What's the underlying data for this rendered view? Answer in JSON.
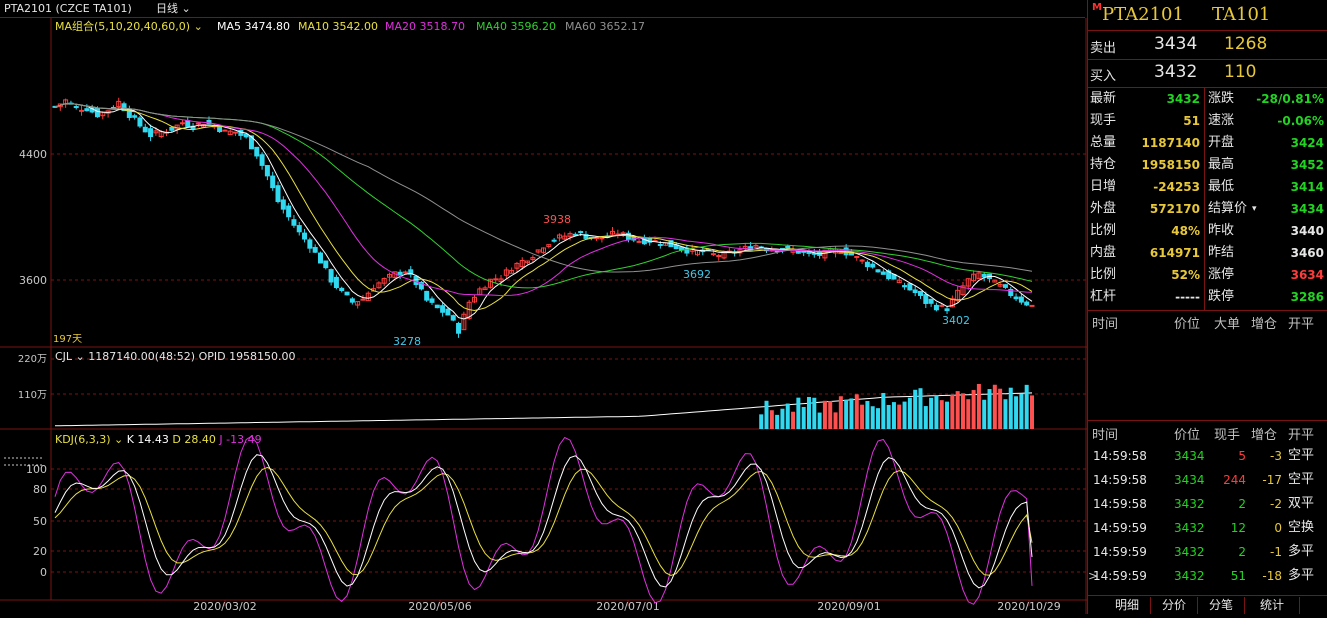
{
  "topbar": {
    "symbol": "PTA2101 (CZCE TA101)",
    "period": "日线",
    "period_icon": "chevron-down"
  },
  "main": {
    "ma_label": "MA组合(5,10,20,40,60,0)",
    "ma_items": [
      {
        "label": "MA5 3474.80",
        "color": "#ffffff"
      },
      {
        "label": "MA10 3542.00",
        "color": "#e8e040"
      },
      {
        "label": "MA20 3518.70",
        "color": "#e030e0"
      },
      {
        "label": "MA40 3596.20",
        "color": "#30d030"
      },
      {
        "label": "MA60 3652.17",
        "color": "#909090"
      }
    ],
    "yticks": [
      "4400",
      "3600"
    ],
    "annotations": {
      "high": "3938",
      "low1": "3278",
      "mid": "3692",
      "low2": "3402",
      "days": "197天"
    }
  },
  "volume": {
    "legend_name": "CJL",
    "legend_value": "1187140.00(48:52)",
    "legend_opid": "OPID 1958150.00",
    "yticks": [
      "220万",
      "110万"
    ]
  },
  "kdj": {
    "legend_name": "KDJ(6,3,3)",
    "k": "K 14.43",
    "d": "D 28.40",
    "j": "J -13.49",
    "yticks": [
      "100",
      "80",
      "50",
      "20",
      "0"
    ]
  },
  "xaxis": [
    "2020/03/02",
    "2020/05/06",
    "2020/07/01",
    "2020/09/01",
    "2020/10/29"
  ],
  "chart_data": {
    "type": "candlestick",
    "x_labels": [
      "2020/03/02",
      "2020/05/06",
      "2020/07/01",
      "2020/09/01",
      "2020/10/29"
    ],
    "price_ticks": [
      4400,
      3600
    ],
    "annotated_prices": [
      3938,
      3278,
      3692,
      3402
    ],
    "close_path": [
      4700,
      4740,
      4690,
      4690,
      4650,
      4680,
      4730,
      4650,
      4580,
      4520,
      4540,
      4560,
      4600,
      4580,
      4600,
      4580,
      4540,
      4540,
      4500,
      4400,
      4260,
      4100,
      4000,
      3900,
      3820,
      3720,
      3600,
      3520,
      3460,
      3480,
      3560,
      3600,
      3640,
      3660,
      3580,
      3470,
      3420,
      3380,
      3280,
      3460,
      3540,
      3600,
      3620,
      3680,
      3720,
      3760,
      3820,
      3860,
      3880,
      3900,
      3880,
      3860,
      3880,
      3900,
      3870,
      3850,
      3850,
      3840,
      3820,
      3800,
      3780,
      3780,
      3760,
      3760,
      3780,
      3800,
      3820,
      3800,
      3800,
      3790,
      3780,
      3760,
      3760,
      3780,
      3790,
      3760,
      3720,
      3680,
      3640,
      3600,
      3560,
      3520,
      3460,
      3430,
      3420,
      3520,
      3600,
      3640,
      3600,
      3560,
      3510,
      3470,
      3434
    ],
    "series": [
      {
        "name": "MA5",
        "last": 3474.8,
        "color": "#ffffff"
      },
      {
        "name": "MA10",
        "last": 3542.0,
        "color": "#e8e040"
      },
      {
        "name": "MA20",
        "last": 3518.7,
        "color": "#e030e0"
      },
      {
        "name": "MA40",
        "last": 3596.2,
        "color": "#30d030"
      },
      {
        "name": "MA60",
        "last": 3652.17,
        "color": "#909090"
      }
    ],
    "volume_axis_wan": [
      220,
      110
    ],
    "volume_last": 1187140,
    "open_interest_last": 1958150,
    "kdj_axis": [
      100,
      80,
      50,
      20,
      0
    ],
    "kdj_last": {
      "K": 14.43,
      "D": 28.4,
      "J": -13.49
    }
  },
  "quote": {
    "header_icon": "M",
    "code": "PTA2101",
    "code2": "TA101",
    "sell_label": "卖出",
    "sell_price": "3434",
    "sell_vol": "1268",
    "buy_label": "买入",
    "buy_price": "3432",
    "buy_vol": "110",
    "left": [
      {
        "label": "最新",
        "value": "3432",
        "color": "grn"
      },
      {
        "label": "现手",
        "value": "51",
        "color": "yel"
      },
      {
        "label": "总量",
        "value": "1187140",
        "color": "yel"
      },
      {
        "label": "持仓",
        "value": "1958150",
        "color": "yel"
      },
      {
        "label": "日增",
        "value": "-24253",
        "color": "yel"
      },
      {
        "label": "外盘",
        "value": "572170",
        "color": "yel"
      },
      {
        "label": "比例",
        "value": "48%",
        "color": "yel"
      },
      {
        "label": "内盘",
        "value": "614971",
        "color": "yel"
      },
      {
        "label": "比例",
        "value": "52%",
        "color": "yel"
      },
      {
        "label": "杠杆",
        "value": "-----",
        "color": "wht"
      }
    ],
    "right": [
      {
        "label": "涨跌",
        "value": "-28/0.81%",
        "color": "grn"
      },
      {
        "label": "速涨",
        "value": "-0.06%",
        "color": "grn"
      },
      {
        "label": "开盘",
        "value": "3424",
        "color": "grn"
      },
      {
        "label": "最高",
        "value": "3452",
        "color": "grn"
      },
      {
        "label": "最低",
        "value": "3414",
        "color": "grn"
      },
      {
        "label": "结算价",
        "value": "3434",
        "color": "grn"
      },
      {
        "label": "昨收",
        "value": "3440",
        "color": "wht"
      },
      {
        "label": "昨结",
        "value": "3460",
        "color": "wht"
      },
      {
        "label": "涨停",
        "value": "3634",
        "color": "red"
      },
      {
        "label": "跌停",
        "value": "3286",
        "color": "grn"
      }
    ]
  },
  "bigorder": {
    "headers": [
      "时间",
      "价位",
      "大单",
      "增仓",
      "开平"
    ]
  },
  "ticks": {
    "headers": [
      "时间",
      "价位",
      "现手",
      "增仓",
      "开平"
    ],
    "rows": [
      {
        "time": "14:59:58",
        "price": "3434",
        "vol": "5",
        "oi": "-3",
        "type": "空平",
        "volc": "red"
      },
      {
        "time": "14:59:58",
        "price": "3434",
        "vol": "244",
        "oi": "-17",
        "type": "空平",
        "volc": "red"
      },
      {
        "time": "14:59:58",
        "price": "3432",
        "vol": "2",
        "oi": "-2",
        "type": "双平",
        "volc": "grn"
      },
      {
        "time": "14:59:59",
        "price": "3432",
        "vol": "12",
        "oi": "0",
        "type": "空换",
        "volc": "grn"
      },
      {
        "time": "14:59:59",
        "price": "3432",
        "vol": "2",
        "oi": "-1",
        "type": "多平",
        "volc": "grn"
      },
      {
        "time": "14:59:59",
        "price": "3432",
        "vol": "51",
        "oi": "-18",
        "type": "多平",
        "volc": "grn"
      }
    ],
    "cursor": ">"
  },
  "tabs": [
    "明细",
    "分价",
    "分笔",
    "统计"
  ]
}
